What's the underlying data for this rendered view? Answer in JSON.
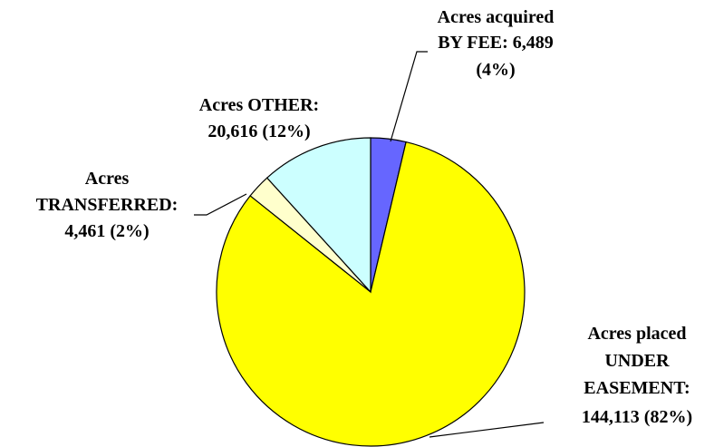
{
  "chart_data": {
    "type": "pie",
    "categories": [
      [
        "Acres acquired",
        "BY FEE:"
      ],
      [
        "Acres placed",
        "UNDER",
        "EASEMENT:"
      ],
      [
        "Acres",
        "TRANSFERRED:"
      ],
      [
        "Acres OTHER:"
      ]
    ],
    "values": [
      6489,
      144113,
      4461,
      20616
    ],
    "value_labels": [
      "6,489",
      "144,113",
      "4,461",
      "20,616"
    ],
    "percents": [
      4,
      82,
      2,
      12
    ],
    "percent_labels": [
      "(4%)",
      "(82%)",
      "(2%)",
      "(12%)"
    ],
    "colors": [
      "#6666ff",
      "#ffff00",
      "#ffffcc",
      "#ccffff"
    ]
  }
}
